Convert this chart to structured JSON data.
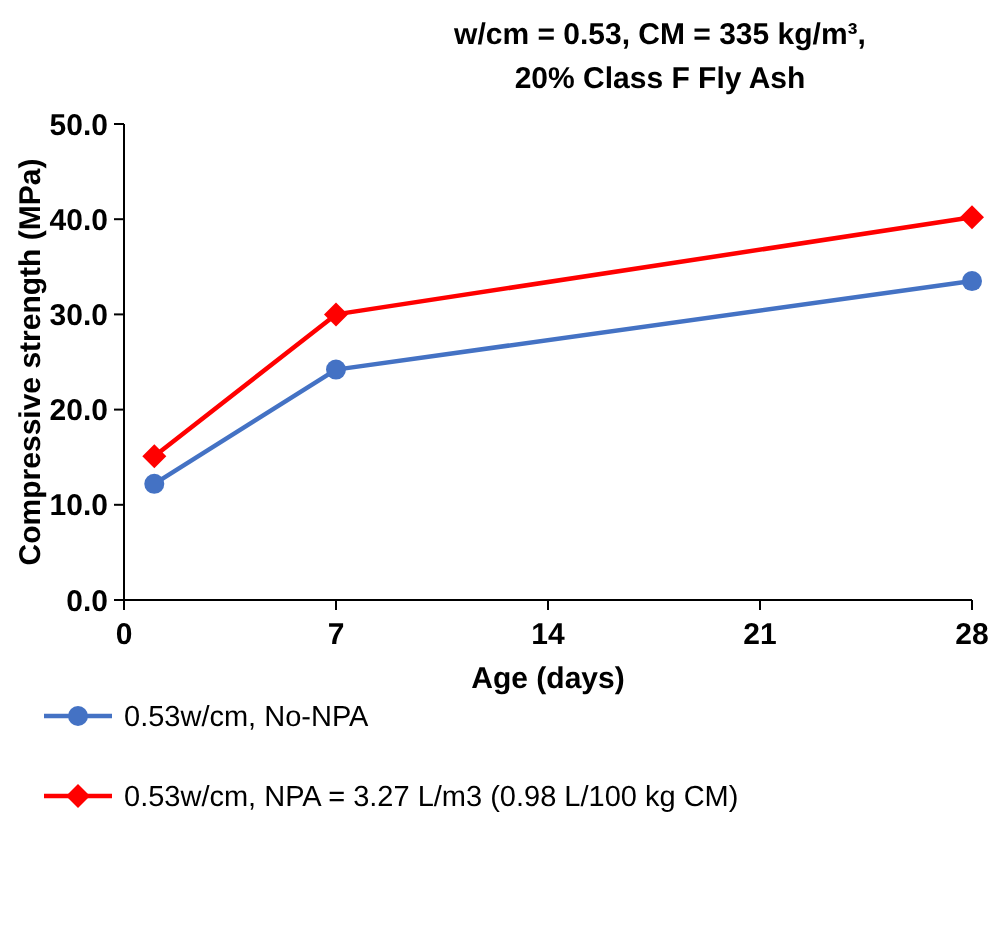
{
  "chart_data": {
    "type": "line",
    "title": "w/cm = 0.53, CM = 335 kg/m³, 20% Class F Fly Ash",
    "xlabel": "Age (days)",
    "ylabel": "Compressive strength (MPa)",
    "xlim": [
      0,
      28
    ],
    "xticks": [
      0,
      7,
      14,
      21,
      28
    ],
    "ylim": [
      0,
      50
    ],
    "yticks": [
      {
        "value": 0,
        "label": "0.0"
      },
      {
        "value": 10,
        "label": "10.0"
      },
      {
        "value": 20,
        "label": "20.0"
      },
      {
        "value": 30,
        "label": "30.0"
      },
      {
        "value": 40,
        "label": "40.0"
      },
      {
        "value": 50,
        "label": "50.0"
      }
    ],
    "x": [
      1,
      7,
      28
    ],
    "grid": false,
    "legend": "bottom",
    "line_style": "solid",
    "series": [
      {
        "name": "0.53w/cm, No-NPA",
        "color": "#4472c4",
        "marker": "circle",
        "values": [
          12.2,
          24.2,
          33.5
        ]
      },
      {
        "name": "0.53w/cm, NPA = 3.27 L/m3 (0.98 L/100 kg CM)",
        "color": "#ff0000",
        "marker": "diamond",
        "values": [
          15.1,
          30.0,
          40.2
        ]
      }
    ]
  }
}
